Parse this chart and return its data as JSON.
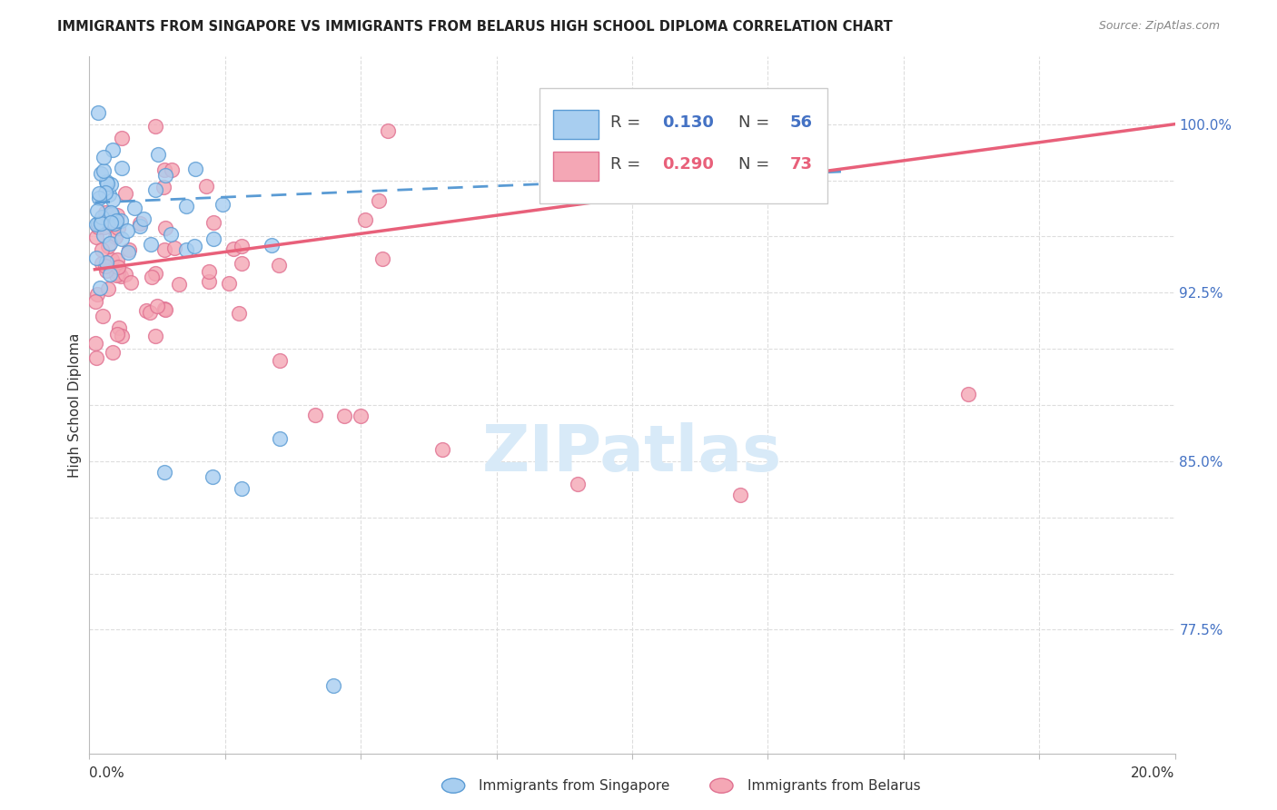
{
  "title": "IMMIGRANTS FROM SINGAPORE VS IMMIGRANTS FROM BELARUS HIGH SCHOOL DIPLOMA CORRELATION CHART",
  "source": "Source: ZipAtlas.com",
  "ylabel": "High School Diploma",
  "singapore_color": "#A8CEF0",
  "singapore_edge": "#5A9BD4",
  "belarus_color": "#F4A7B5",
  "belarus_edge": "#E07090",
  "singapore_R": 0.13,
  "singapore_N": 56,
  "belarus_R": 0.29,
  "belarus_N": 73,
  "watermark_color": "#D8EAF8",
  "grid_color": "#DDDDDD",
  "xlim": [
    0.0,
    0.2
  ],
  "ylim": [
    0.72,
    1.03
  ],
  "ytick_vals": [
    0.775,
    0.85,
    0.925,
    1.0
  ],
  "ytick_labels": [
    "77.5%",
    "85.0%",
    "92.5%",
    "100.0%"
  ],
  "sg_line_color": "#5A9BD4",
  "bl_line_color": "#E8607A",
  "title_color": "#222222",
  "source_color": "#888888",
  "label_color": "#333333",
  "right_label_color": "#4472C4"
}
